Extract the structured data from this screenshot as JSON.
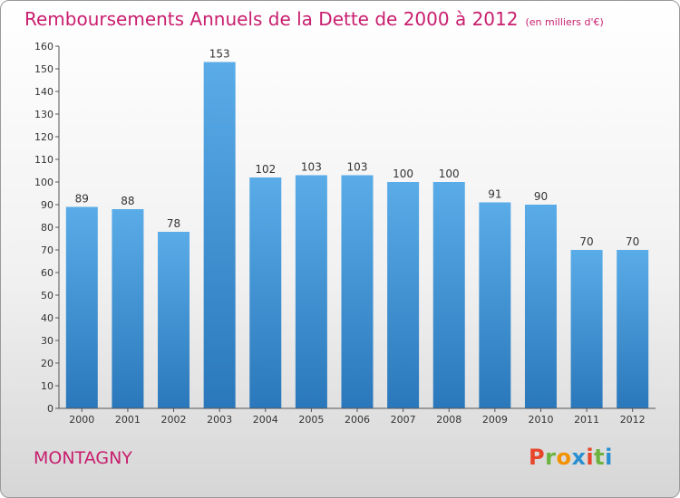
{
  "title": "Remboursements Annuels de la Dette de 2000 à 2012",
  "unit": "(en milliers d'€)",
  "commune": "MONTAGNY",
  "logo": "Proxiti",
  "logo_colors": [
    "#e8462b",
    "#6cb33f",
    "#f39200",
    "#2a8fd1",
    "#e8462b",
    "#6cb33f",
    "#2a8fd1"
  ],
  "colors": {
    "bar_top": "#5aace8",
    "bar_bottom": "#2a78bb",
    "accent": "#c81e6e"
  },
  "chart_data": {
    "type": "bar",
    "categories": [
      "2000",
      "2001",
      "2002",
      "2003",
      "2004",
      "2005",
      "2006",
      "2007",
      "2008",
      "2009",
      "2010",
      "2011",
      "2012"
    ],
    "values": [
      89,
      88,
      78,
      153,
      102,
      103,
      103,
      100,
      100,
      91,
      90,
      70,
      70
    ],
    "ylim": [
      0,
      160
    ],
    "yticks": [
      0,
      10,
      20,
      30,
      40,
      50,
      60,
      70,
      80,
      90,
      100,
      110,
      120,
      130,
      140,
      150,
      160
    ],
    "grid": false,
    "data_labels": true
  }
}
